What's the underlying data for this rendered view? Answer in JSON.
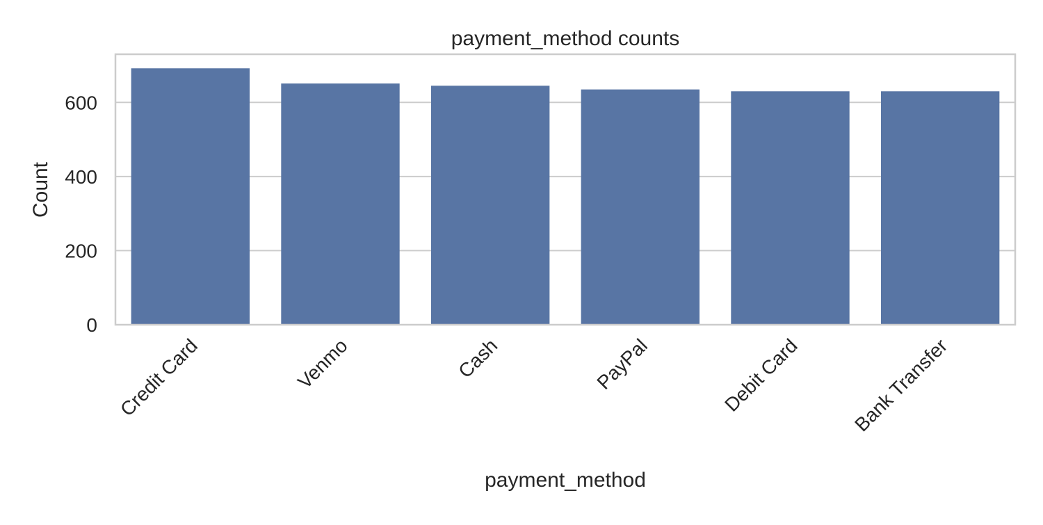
{
  "chart_data": {
    "type": "bar",
    "title": "payment_method counts",
    "xlabel": "payment_method",
    "ylabel": "Count",
    "categories": [
      "Credit Card",
      "Venmo",
      "Cash",
      "PayPal",
      "Debit Card",
      "Bank Transfer"
    ],
    "values": [
      692,
      651,
      645,
      635,
      630,
      630
    ],
    "ylim": [
      0,
      730
    ],
    "yticks": [
      0,
      200,
      400,
      600
    ],
    "grid": true,
    "legend": "none",
    "colors": {
      "bar": "#5875a4",
      "grid": "#cccccc",
      "axes_edge": "#cccccc",
      "text": "#262626",
      "background": "#ffffff"
    }
  }
}
